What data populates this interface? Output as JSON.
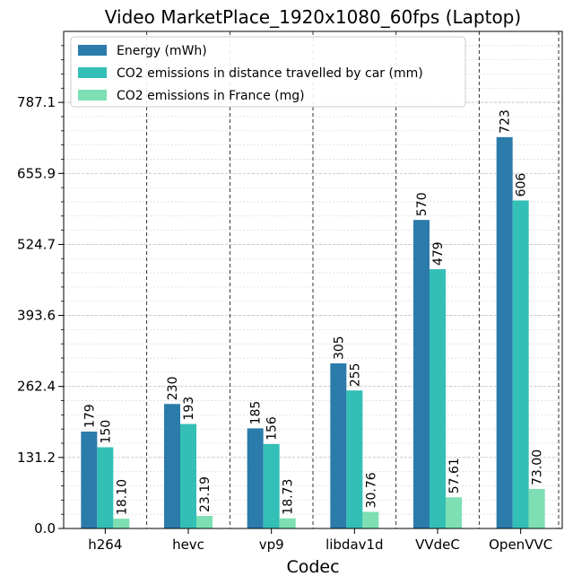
{
  "chart_data": {
    "type": "bar",
    "title": "Video MarketPlace_1920x1080_60fps (Laptop)",
    "xlabel": "Codec",
    "ylabel": "",
    "categories": [
      "h264",
      "hevc",
      "vp9",
      "libdav1d",
      "VVdeC",
      "OpenVVC"
    ],
    "yticks": [
      "0.0",
      "131.2",
      "262.4",
      "393.6",
      "524.7",
      "655.9",
      "787.1"
    ],
    "ylim": [
      0,
      918.3
    ],
    "grid": true,
    "legend_position": "top-left",
    "series": [
      {
        "name": "Energy (mWh)",
        "color": "#2b7bab",
        "values": [
          179,
          230,
          185,
          305,
          570,
          723
        ],
        "labels": [
          "179",
          "230",
          "185",
          "305",
          "570",
          "723"
        ]
      },
      {
        "name": "CO2 emissions in distance travelled by car (mm)",
        "color": "#33bfb6",
        "values": [
          150,
          193,
          156,
          255,
          479,
          606
        ],
        "labels": [
          "150",
          "193",
          "156",
          "255",
          "479",
          "606"
        ]
      },
      {
        "name": "CO2 emissions in France (mg)",
        "color": "#7ddfb3",
        "values": [
          18.1,
          23.19,
          18.73,
          30.76,
          57.61,
          73.0
        ],
        "labels": [
          "18.10",
          "23.19",
          "18.73",
          "30.76",
          "57.61",
          "73.00"
        ]
      }
    ]
  }
}
